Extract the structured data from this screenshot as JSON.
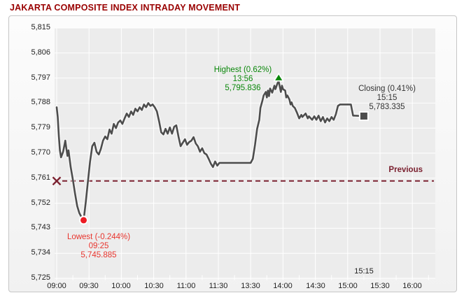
{
  "title": "JAKARTA COMPOSITE INDEX INTRADAY MOVEMENT",
  "colors": {
    "title": "#990000",
    "previous": "#7b2130",
    "highest_text": "#0a870a",
    "highest_marker": "#0a870a",
    "lowest_text": "#e8352e",
    "lowest_marker": "#ed1c24",
    "closing_text": "#333333",
    "closing_marker": "#4d4d4d",
    "line": "#4d4d4d",
    "axis_text": "#222222",
    "plot_bg": "#ececec",
    "grid": "#ffffff",
    "panel_border": "#c6c6c6"
  },
  "chart_data": {
    "type": "line",
    "title": "JAKARTA COMPOSITE INDEX INTRADAY MOVEMENT",
    "xlabel": "",
    "ylabel": "",
    "ylim": [
      5725,
      5815
    ],
    "y_step": 9,
    "grid": "on",
    "y_tick_labels": [
      "5,815",
      "5,806",
      "5,797",
      "5,788",
      "5,779",
      "5,770",
      "5,761",
      "5,752",
      "5,743",
      "5,734",
      "5,725"
    ],
    "x_tick_labels": [
      "09:00",
      "09:30",
      "10:00",
      "10:30",
      "11:00",
      "11:30",
      "13:30",
      "14:00",
      "14:30",
      "15:00",
      "15:30",
      "16:00"
    ],
    "x_break_between": [
      "11:30",
      "13:30"
    ],
    "closing_axis_time_label": "15:15",
    "previous_label": "Previous",
    "previous_level": 5760,
    "annotations": {
      "highest": {
        "lines": [
          "Highest (0.62%)",
          "13:56",
          "5,795.836"
        ],
        "time": "13:56",
        "value": 5795.836
      },
      "lowest": {
        "lines": [
          "Lowest (-0.244%)",
          "09:25",
          "5,745.885"
        ],
        "time": "09:25",
        "value": 5745.885
      },
      "closing": {
        "lines": [
          "Closing (0.41%)",
          "15:15",
          "5,783.335"
        ],
        "time": "15:15",
        "value": 5783.335
      }
    },
    "points": [
      [
        "09:00",
        5786.5
      ],
      [
        "09:01",
        5783
      ],
      [
        "09:02",
        5776
      ],
      [
        "09:03",
        5771
      ],
      [
        "09:04",
        5768.5
      ],
      [
        "09:06",
        5770.5
      ],
      [
        "09:08",
        5774.5
      ],
      [
        "09:09",
        5771.5
      ],
      [
        "09:10",
        5769
      ],
      [
        "09:11",
        5771
      ],
      [
        "09:13",
        5765
      ],
      [
        "09:15",
        5760.5
      ],
      [
        "09:17",
        5755.5
      ],
      [
        "09:19",
        5751
      ],
      [
        "09:21",
        5748.5
      ],
      [
        "09:23",
        5747
      ],
      [
        "09:25",
        5745.885
      ],
      [
        "09:27",
        5752.5
      ],
      [
        "09:29",
        5760
      ],
      [
        "09:31",
        5767
      ],
      [
        "09:33",
        5772.5
      ],
      [
        "09:35",
        5773.75
      ],
      [
        "09:37",
        5770.5
      ],
      [
        "09:39",
        5769.5
      ],
      [
        "09:41",
        5771.5
      ],
      [
        "09:43",
        5774.5
      ],
      [
        "09:45",
        5776
      ],
      [
        "09:47",
        5775
      ],
      [
        "09:49",
        5778.5
      ],
      [
        "09:51",
        5777
      ],
      [
        "09:53",
        5780.5
      ],
      [
        "09:55",
        5779
      ],
      [
        "09:57",
        5781
      ],
      [
        "09:59",
        5781.75
      ],
      [
        "10:01",
        5780.5
      ],
      [
        "10:03",
        5782.5
      ],
      [
        "10:05",
        5784.25
      ],
      [
        "10:07",
        5783
      ],
      [
        "10:09",
        5785
      ],
      [
        "10:11",
        5783.75
      ],
      [
        "10:13",
        5786
      ],
      [
        "10:15",
        5785
      ],
      [
        "10:17",
        5786.5
      ],
      [
        "10:19",
        5785.5
      ],
      [
        "10:21",
        5787.5
      ],
      [
        "10:23",
        5786.5
      ],
      [
        "10:25",
        5788
      ],
      [
        "10:27",
        5787
      ],
      [
        "10:29",
        5787.5
      ],
      [
        "10:31",
        5786.5
      ],
      [
        "10:33",
        5785
      ],
      [
        "10:35",
        5781.5
      ],
      [
        "10:37",
        5777.5
      ],
      [
        "10:39",
        5776.75
      ],
      [
        "10:41",
        5778.75
      ],
      [
        "10:43",
        5777
      ],
      [
        "10:45",
        5779.25
      ],
      [
        "10:47",
        5777
      ],
      [
        "10:49",
        5779.5
      ],
      [
        "10:51",
        5780
      ],
      [
        "10:53",
        5776
      ],
      [
        "10:55",
        5772.5
      ],
      [
        "10:57",
        5773.75
      ],
      [
        "10:59",
        5775
      ],
      [
        "11:01",
        5773
      ],
      [
        "11:03",
        5774
      ],
      [
        "11:05",
        5774.5
      ],
      [
        "11:07",
        5775.75
      ],
      [
        "11:09",
        5773.5
      ],
      [
        "11:11",
        5772.5
      ],
      [
        "11:13",
        5770.5
      ],
      [
        "11:15",
        5771.75
      ],
      [
        "11:17",
        5770
      ],
      [
        "11:19",
        5769.5
      ],
      [
        "11:21",
        5768
      ],
      [
        "11:23",
        5766.25
      ],
      [
        "11:25",
        5765
      ],
      [
        "11:27",
        5767
      ],
      [
        "11:29",
        5765.5
      ],
      [
        "11:31",
        5766.5
      ],
      [
        "12:00",
        5766.5
      ],
      [
        "13:30",
        5766.5
      ],
      [
        "13:32",
        5768
      ],
      [
        "13:34",
        5773
      ],
      [
        "13:36",
        5778.75
      ],
      [
        "13:38",
        5782
      ],
      [
        "13:39",
        5786.25
      ],
      [
        "13:41",
        5789
      ],
      [
        "13:42",
        5790.75
      ],
      [
        "13:44",
        5792
      ],
      [
        "13:45",
        5790
      ],
      [
        "13:46",
        5792.5
      ],
      [
        "13:47",
        5790.5
      ],
      [
        "13:48",
        5793.25
      ],
      [
        "13:50",
        5791.75
      ],
      [
        "13:52",
        5794.25
      ],
      [
        "13:53",
        5793
      ],
      [
        "13:55",
        5795.25
      ],
      [
        "13:56",
        5795.836
      ],
      [
        "13:58",
        5792
      ],
      [
        "13:59",
        5794.25
      ],
      [
        "14:00",
        5793
      ],
      [
        "14:02",
        5792.5
      ],
      [
        "14:03",
        5790
      ],
      [
        "14:04",
        5790.75
      ],
      [
        "14:06",
        5789.25
      ],
      [
        "14:07",
        5787.5
      ],
      [
        "14:08",
        5788.25
      ],
      [
        "14:09",
        5787
      ],
      [
        "14:11",
        5786.25
      ],
      [
        "14:13",
        5784.5
      ],
      [
        "14:15",
        5782.5
      ],
      [
        "14:17",
        5783.75
      ],
      [
        "14:18",
        5783
      ],
      [
        "14:21",
        5784.25
      ],
      [
        "14:23",
        5782.5
      ],
      [
        "14:24",
        5783.25
      ],
      [
        "14:27",
        5782
      ],
      [
        "14:29",
        5783.25
      ],
      [
        "14:31",
        5782
      ],
      [
        "14:33",
        5783.5
      ],
      [
        "14:35",
        5781.5
      ],
      [
        "14:37",
        5783
      ],
      [
        "14:39",
        5781
      ],
      [
        "14:41",
        5782.5
      ],
      [
        "14:43",
        5781.5
      ],
      [
        "14:45",
        5783
      ],
      [
        "14:47",
        5782
      ],
      [
        "14:49",
        5784
      ],
      [
        "14:51",
        5787
      ],
      [
        "14:53",
        5787.5
      ],
      [
        "15:03",
        5787.5
      ],
      [
        "15:05",
        5783.5
      ],
      [
        "15:15",
        5783.335
      ]
    ]
  }
}
